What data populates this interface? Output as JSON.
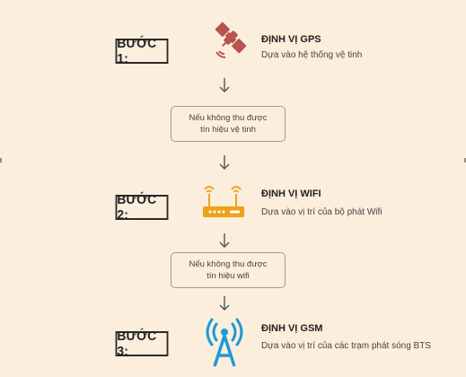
{
  "steps": [
    {
      "label": "BƯỚC 1:",
      "title": "ĐỊNH VỊ GPS",
      "desc": "Dựa vào hệ thống vệ tinh",
      "icon": "satellite-icon"
    },
    {
      "label": "BƯỚC 2:",
      "title": "ĐỊNH VỊ WIFI",
      "desc": "Dựa vào vị trí của bộ phát Wifi",
      "icon": "wifi-router-icon"
    },
    {
      "label": "BƯỚC 3:",
      "title": "ĐỊNH VỊ GSM",
      "desc": "Dựa vào vị trí của các trạm phát sóng BTS",
      "icon": "cell-tower-icon"
    }
  ],
  "conditions": [
    {
      "line1": "Nếu không thu được",
      "line2": "tín hiệu vệ tinh"
    },
    {
      "line1": "Nếu không thu được",
      "line2": "tín hiệu wifi"
    }
  ],
  "colors": {
    "background": "#fbeedd",
    "satellite": "#b8534f",
    "wifi": "#f0a11a",
    "gsm": "#1e9ad6",
    "arrow": "#555555"
  }
}
